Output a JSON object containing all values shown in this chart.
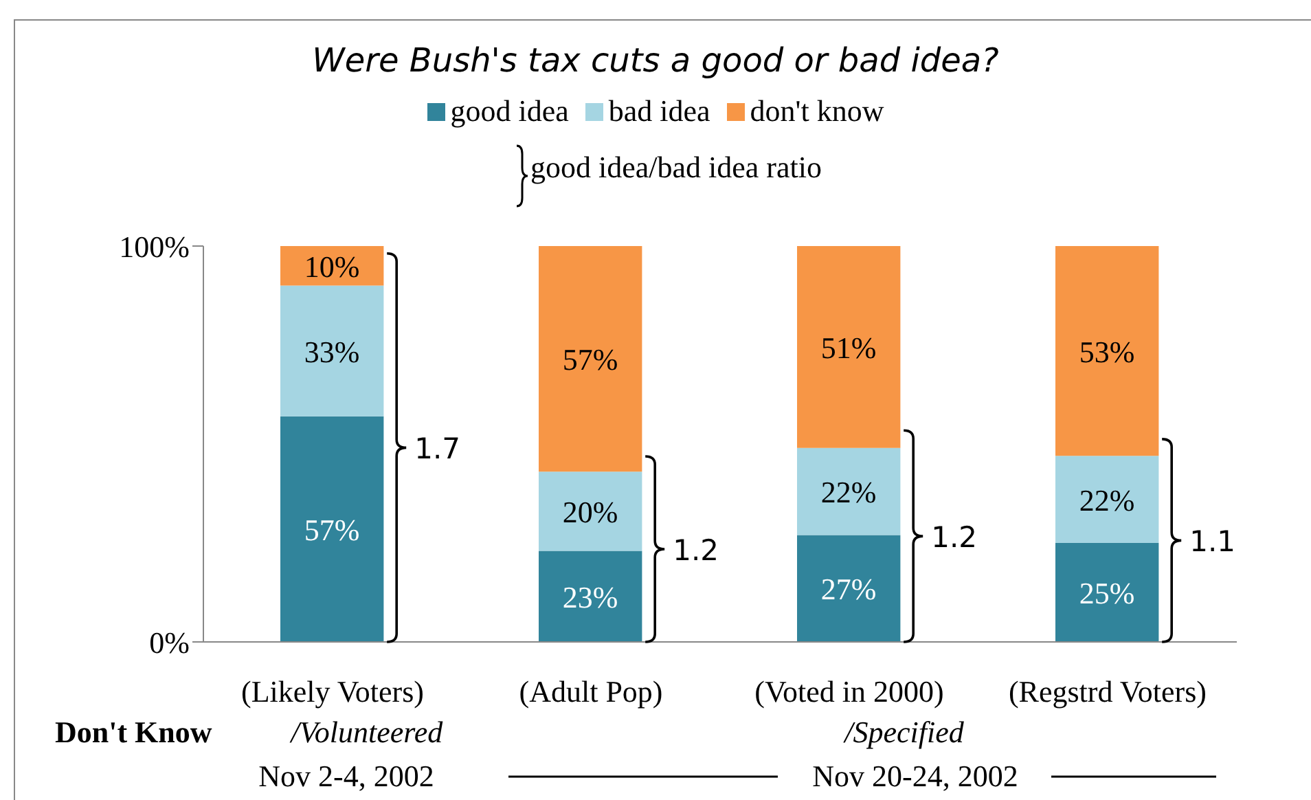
{
  "chart_data": {
    "type": "bar",
    "stacked": true,
    "title": "Were Bush's tax cuts a good or bad idea?",
    "categories": [
      "(Likely Voters)",
      "(Adult Pop)",
      "(Voted in 2000)",
      "(Regstrd Voters)"
    ],
    "series": [
      {
        "name": "good idea",
        "color": "#31849b",
        "values": [
          57,
          23,
          27,
          25
        ],
        "value_labels": [
          "57%",
          "23%",
          "27%",
          "25%"
        ]
      },
      {
        "name": "bad idea",
        "color": "#a5d5e2",
        "values": [
          33,
          20,
          22,
          22
        ],
        "value_labels": [
          "33%",
          "20%",
          "22%",
          "22%"
        ]
      },
      {
        "name": "don't know",
        "color": "#f79646",
        "values": [
          10,
          57,
          51,
          53
        ],
        "value_labels": [
          "10%",
          "57%",
          "51%",
          "53%"
        ]
      }
    ],
    "ylim": [
      0,
      100
    ],
    "yticks": [
      {
        "value": 0,
        "label": "0%"
      },
      {
        "value": 100,
        "label": "100%"
      }
    ],
    "grid": false,
    "legend": "top",
    "annotations": [
      "good idea/bad idea ratio",
      "Don't Know",
      "/Volunteered",
      "/Specified",
      "Nov 2-4, 2002",
      "Nov 20-24, 2002",
      "1.7",
      "1.2",
      "1.2",
      "1.1"
    ]
  }
}
